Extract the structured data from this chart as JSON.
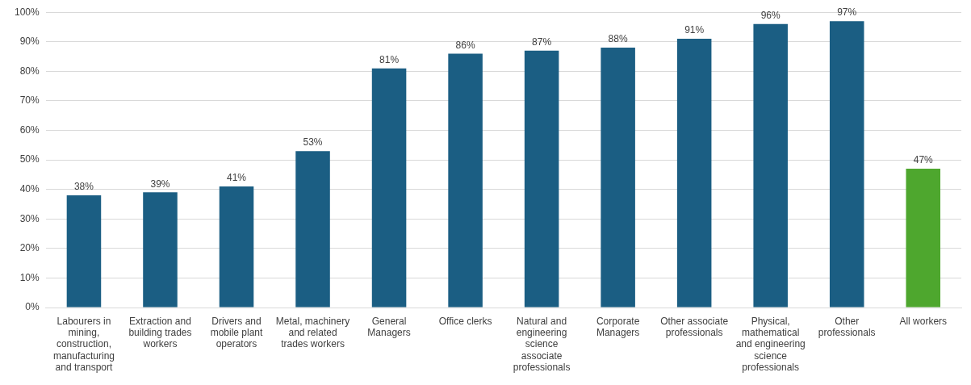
{
  "chart_data": {
    "type": "bar",
    "categories": [
      "Labourers in mining, construction, manufacturing and transport",
      "Extraction and building trades workers",
      "Drivers and mobile plant operators",
      "Metal, machinery and related trades workers",
      "General Managers",
      "Office clerks",
      "Natural and engineering science associate professionals",
      "Corporate Managers",
      "Other associate professionals",
      "Physical, mathematical and engineering science professionals",
      "Other professionals",
      "All workers"
    ],
    "values": [
      38,
      39,
      41,
      53,
      81,
      86,
      87,
      88,
      91,
      96,
      97,
      47
    ],
    "value_labels": [
      "38%",
      "39%",
      "41%",
      "53%",
      "81%",
      "86%",
      "87%",
      "88%",
      "91%",
      "96%",
      "97%",
      "47%"
    ],
    "colors": [
      "#1b5e83",
      "#1b5e83",
      "#1b5e83",
      "#1b5e83",
      "#1b5e83",
      "#1b5e83",
      "#1b5e83",
      "#1b5e83",
      "#1b5e83",
      "#1b5e83",
      "#1b5e83",
      "#4ea72e"
    ],
    "ylim": [
      0,
      100
    ],
    "yticks": [
      {
        "value": 0,
        "label": "0%"
      },
      {
        "value": 10,
        "label": "10%"
      },
      {
        "value": 20,
        "label": "20%"
      },
      {
        "value": 30,
        "label": "30%"
      },
      {
        "value": 40,
        "label": "40%"
      },
      {
        "value": 50,
        "label": "50%"
      },
      {
        "value": 60,
        "label": "60%"
      },
      {
        "value": 70,
        "label": "70%"
      },
      {
        "value": 80,
        "label": "80%"
      },
      {
        "value": 90,
        "label": "90%"
      },
      {
        "value": 100,
        "label": "100%"
      }
    ],
    "grid": "y",
    "legend": false
  }
}
